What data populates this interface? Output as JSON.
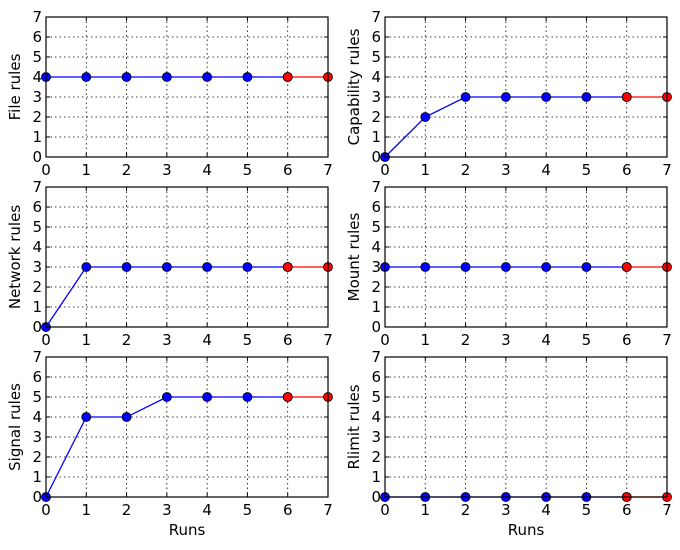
{
  "figure": {
    "colors": {
      "series_a": "#0000ff",
      "series_b": "#ff0000",
      "marker_edge": "#000000",
      "grid": "#000000"
    }
  },
  "chart_data": [
    {
      "type": "line",
      "title": "",
      "xlabel": "",
      "ylabel": "File rules",
      "xlim": [
        0,
        7
      ],
      "ylim": [
        0,
        7
      ],
      "xticks": [
        "0",
        "1",
        "2",
        "3",
        "4",
        "5",
        "6",
        "7"
      ],
      "yticks": [
        "0",
        "1",
        "2",
        "3",
        "4",
        "5",
        "6",
        "7"
      ],
      "grid": true,
      "series": [
        {
          "name": "blue",
          "color": "#0000ff",
          "x": [
            0,
            1,
            2,
            3,
            4,
            5,
            6
          ],
          "y": [
            4,
            4,
            4,
            4,
            4,
            4,
            4
          ]
        },
        {
          "name": "red",
          "color": "#ff0000",
          "x": [
            6,
            7
          ],
          "y": [
            4,
            4
          ]
        }
      ]
    },
    {
      "type": "line",
      "title": "",
      "xlabel": "",
      "ylabel": "Capability rules",
      "xlim": [
        0,
        7
      ],
      "ylim": [
        0,
        7
      ],
      "xticks": [
        "0",
        "1",
        "2",
        "3",
        "4",
        "5",
        "6",
        "7"
      ],
      "yticks": [
        "0",
        "1",
        "2",
        "3",
        "4",
        "5",
        "6",
        "7"
      ],
      "grid": true,
      "series": [
        {
          "name": "blue",
          "color": "#0000ff",
          "x": [
            0,
            1,
            2,
            3,
            4,
            5,
            6
          ],
          "y": [
            0,
            2,
            3,
            3,
            3,
            3,
            3
          ]
        },
        {
          "name": "red",
          "color": "#ff0000",
          "x": [
            6,
            7
          ],
          "y": [
            3,
            3
          ]
        }
      ]
    },
    {
      "type": "line",
      "title": "",
      "xlabel": "",
      "ylabel": "Network rules",
      "xlim": [
        0,
        7
      ],
      "ylim": [
        0,
        7
      ],
      "xticks": [
        "0",
        "1",
        "2",
        "3",
        "4",
        "5",
        "6",
        "7"
      ],
      "yticks": [
        "0",
        "1",
        "2",
        "3",
        "4",
        "5",
        "6",
        "7"
      ],
      "grid": true,
      "series": [
        {
          "name": "blue",
          "color": "#0000ff",
          "x": [
            0,
            1,
            2,
            3,
            4,
            5,
            6
          ],
          "y": [
            0,
            3,
            3,
            3,
            3,
            3,
            3
          ]
        },
        {
          "name": "red",
          "color": "#ff0000",
          "x": [
            6,
            7
          ],
          "y": [
            3,
            3
          ]
        }
      ]
    },
    {
      "type": "line",
      "title": "",
      "xlabel": "",
      "ylabel": "Mount rules",
      "xlim": [
        0,
        7
      ],
      "ylim": [
        0,
        7
      ],
      "xticks": [
        "0",
        "1",
        "2",
        "3",
        "4",
        "5",
        "6",
        "7"
      ],
      "yticks": [
        "0",
        "1",
        "2",
        "3",
        "4",
        "5",
        "6",
        "7"
      ],
      "grid": true,
      "series": [
        {
          "name": "blue",
          "color": "#0000ff",
          "x": [
            0,
            1,
            2,
            3,
            4,
            5,
            6
          ],
          "y": [
            3,
            3,
            3,
            3,
            3,
            3,
            3
          ]
        },
        {
          "name": "red",
          "color": "#ff0000",
          "x": [
            6,
            7
          ],
          "y": [
            3,
            3
          ]
        }
      ]
    },
    {
      "type": "line",
      "title": "",
      "xlabel": "Runs",
      "ylabel": "Signal rules",
      "xlim": [
        0,
        7
      ],
      "ylim": [
        0,
        7
      ],
      "xticks": [
        "0",
        "1",
        "2",
        "3",
        "4",
        "5",
        "6",
        "7"
      ],
      "yticks": [
        "0",
        "1",
        "2",
        "3",
        "4",
        "5",
        "6",
        "7"
      ],
      "grid": true,
      "series": [
        {
          "name": "blue",
          "color": "#0000ff",
          "x": [
            0,
            1,
            2,
            3,
            4,
            5,
            6
          ],
          "y": [
            0,
            4,
            4,
            5,
            5,
            5,
            5
          ]
        },
        {
          "name": "red",
          "color": "#ff0000",
          "x": [
            6,
            7
          ],
          "y": [
            5,
            5
          ]
        }
      ]
    },
    {
      "type": "line",
      "title": "",
      "xlabel": "Runs",
      "ylabel": "Rlimit rules",
      "xlim": [
        0,
        7
      ],
      "ylim": [
        0,
        7
      ],
      "xticks": [
        "0",
        "1",
        "2",
        "3",
        "4",
        "5",
        "6",
        "7"
      ],
      "yticks": [
        "0",
        "1",
        "2",
        "3",
        "4",
        "5",
        "6",
        "7"
      ],
      "grid": true,
      "series": [
        {
          "name": "blue",
          "color": "#0000ff",
          "x": [
            0,
            1,
            2,
            3,
            4,
            5,
            6
          ],
          "y": [
            0,
            0,
            0,
            0,
            0,
            0,
            0
          ]
        },
        {
          "name": "red",
          "color": "#ff0000",
          "x": [
            6,
            7
          ],
          "y": [
            0,
            0
          ]
        }
      ]
    }
  ]
}
